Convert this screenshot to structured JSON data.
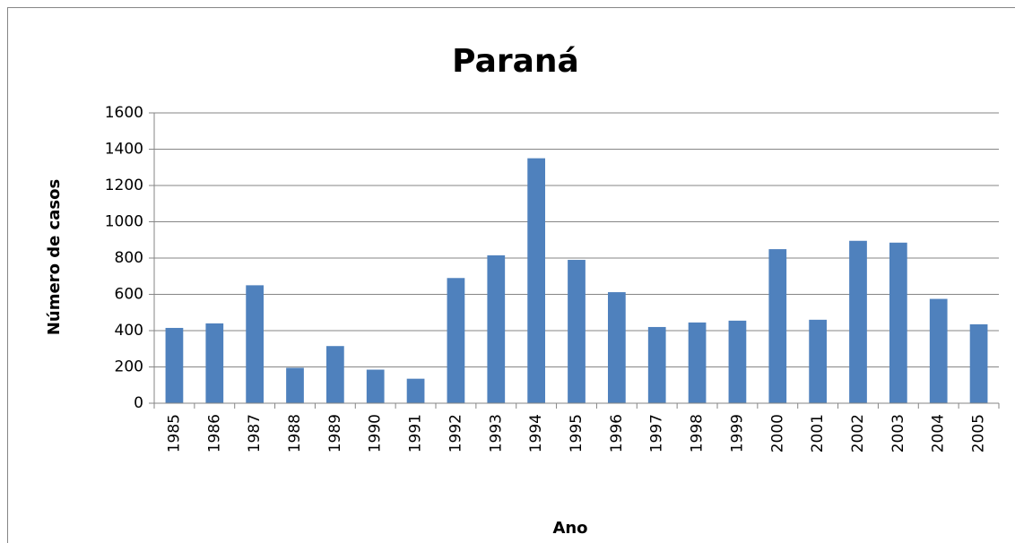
{
  "chart_data": {
    "type": "bar",
    "title": "Paraná",
    "x_label": "Ano",
    "y_label": "Número de casos",
    "categories": [
      "1985",
      "1986",
      "1987",
      "1988",
      "1989",
      "1990",
      "1991",
      "1992",
      "1993",
      "1994",
      "1995",
      "1996",
      "1997",
      "1998",
      "1999",
      "2000",
      "2001",
      "2002",
      "2003",
      "2004",
      "2005"
    ],
    "values": [
      415,
      440,
      650,
      195,
      315,
      185,
      135,
      690,
      815,
      1350,
      790,
      612,
      420,
      445,
      455,
      849,
      460,
      895,
      885,
      575,
      435
    ],
    "color": "#4f81bd",
    "ylim": [
      0,
      1600
    ],
    "yticks": [
      0,
      200,
      400,
      600,
      800,
      1000,
      1200,
      1400,
      1600
    ],
    "grid": true
  }
}
